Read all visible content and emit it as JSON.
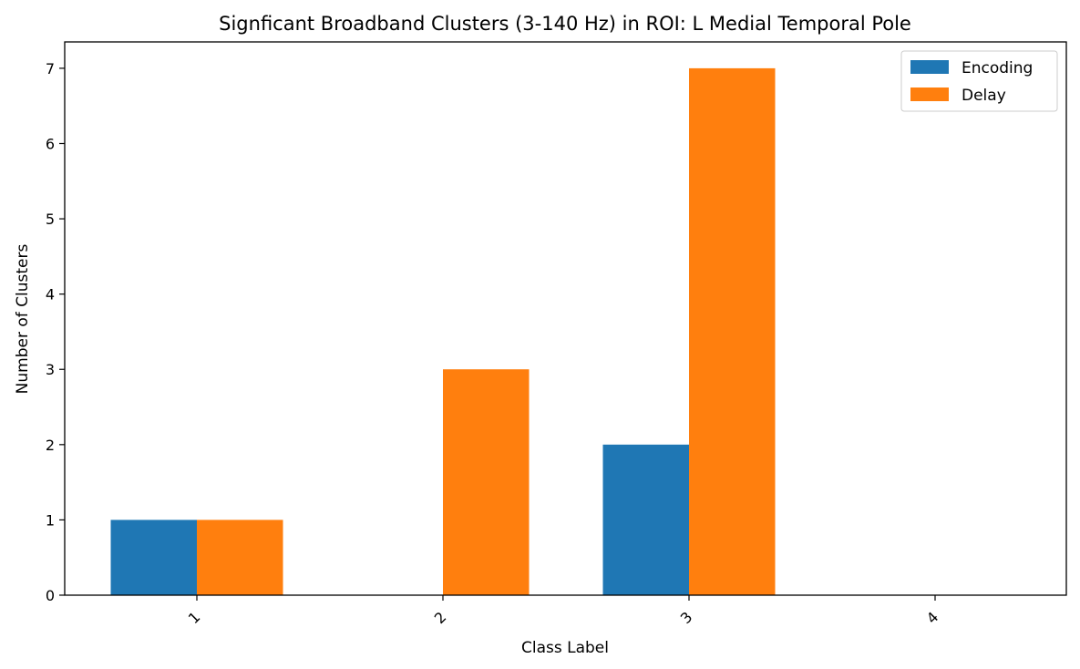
{
  "chart_data": {
    "type": "bar",
    "title": "Signficant Broadband Clusters (3-140 Hz) in ROI: L Medial Temporal Pole",
    "xlabel": "Class Label",
    "ylabel": "Number of Clusters",
    "categories": [
      "1",
      "2",
      "3",
      "4"
    ],
    "series": [
      {
        "name": "Encoding",
        "values": [
          1,
          0,
          2,
          0
        ],
        "color": "#1f77b4"
      },
      {
        "name": "Delay",
        "values": [
          1,
          3,
          7,
          0
        ],
        "color": "#ff7f0e"
      }
    ],
    "ylim": [
      0,
      7.35
    ],
    "yticks": [
      0,
      1,
      2,
      3,
      4,
      5,
      6,
      7
    ],
    "grid": false,
    "legend_position": "top-right"
  }
}
